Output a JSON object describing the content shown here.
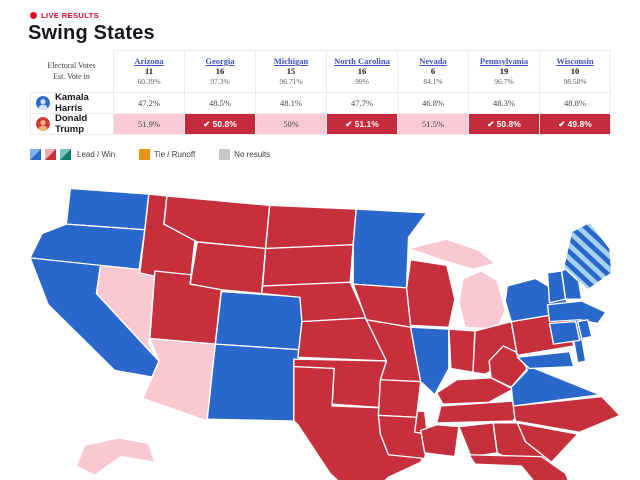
{
  "header": {
    "live_badge": "LIVE RESULTS",
    "title": "Swing States"
  },
  "table": {
    "row_label_line1": "Electoral Votes",
    "row_label_line2": "Est. Vote in",
    "states": [
      {
        "name": "Arizona",
        "electoral_votes": "11",
        "vote_in": "60.39%"
      },
      {
        "name": "Georgia",
        "electoral_votes": "16",
        "vote_in": "97.3%"
      },
      {
        "name": "Michigan",
        "electoral_votes": "15",
        "vote_in": "96.71%"
      },
      {
        "name": "North Carolina",
        "electoral_votes": "16",
        "vote_in": "99%"
      },
      {
        "name": "Nevada",
        "electoral_votes": "6",
        "vote_in": "84.1%"
      },
      {
        "name": "Pennsylvania",
        "electoral_votes": "19",
        "vote_in": "96.7%"
      },
      {
        "name": "Wisconsin",
        "electoral_votes": "10",
        "vote_in": "98.58%"
      }
    ],
    "candidates": [
      {
        "name": "Kamala Harris",
        "party": "dem",
        "cells": [
          {
            "value": "47.2%",
            "status": "none"
          },
          {
            "value": "48.5%",
            "status": "none"
          },
          {
            "value": "48.1%",
            "status": "none"
          },
          {
            "value": "47.7%",
            "status": "none"
          },
          {
            "value": "46.8%",
            "status": "none"
          },
          {
            "value": "48.3%",
            "status": "none"
          },
          {
            "value": "48.8%",
            "status": "none"
          }
        ]
      },
      {
        "name": "Donald Trump",
        "party": "rep",
        "cells": [
          {
            "value": "51.9%",
            "status": "lead"
          },
          {
            "value": "50.8%",
            "status": "win"
          },
          {
            "value": "50%",
            "status": "lead"
          },
          {
            "value": "51.1%",
            "status": "win"
          },
          {
            "value": "51.5%",
            "status": "lead"
          },
          {
            "value": "50.8%",
            "status": "win"
          },
          {
            "value": "49.8%",
            "status": "win"
          }
        ]
      }
    ],
    "win_check": "✔"
  },
  "legend": {
    "lead_win_label": "Lead / Win",
    "tie_label": "Tie / Runoff",
    "no_results_label": "No results"
  },
  "colors": {
    "dem": "#2a67ca",
    "rep": "#c5303c",
    "rep_lead": "#f9c9d2",
    "dem_light": "#a6d2f2",
    "blue_light": "#7fb3e8",
    "pink_light": "#f4a7b4",
    "teal": "#0e7b70",
    "teal_light": "#79c8bf",
    "tie_orange": "#e79414",
    "no_results_gray": "#c9c9c9",
    "win_cell": "#c52b3b",
    "lead_cell": "#f9cad3",
    "live_red": "#e4062c",
    "link_blue": "#4050c8"
  },
  "map": {
    "results": {
      "WA": "dem",
      "OR": "dem",
      "CA": "dem",
      "NV": "rep_lead",
      "ID": "rep",
      "MT": "rep",
      "WY": "rep",
      "UT": "rep",
      "CO": "dem",
      "AZ": "rep_lead",
      "NM": "dem",
      "ND": "rep",
      "SD": "rep",
      "NE": "rep",
      "KS": "rep",
      "OK": "rep",
      "TX": "rep",
      "MN": "dem",
      "IA": "rep",
      "MO": "rep",
      "AR": "rep",
      "LA": "rep",
      "WI": "rep",
      "IL": "dem",
      "MI": "rep_lead",
      "IN": "rep",
      "OH": "rep",
      "KY": "rep",
      "TN": "rep",
      "WV": "rep",
      "VA": "dem",
      "NC": "rep",
      "SC": "rep",
      "GA": "rep",
      "AL": "rep",
      "MS": "rep",
      "FL": "rep",
      "PA": "rep",
      "NY": "dem",
      "NJ": "dem",
      "MD": "dem",
      "DE": "dem",
      "VT": "dem",
      "NH": "dem",
      "MA": "dem",
      "CT": "dem",
      "RI": "dem",
      "ME": "split",
      "AK": "rep_lead"
    }
  }
}
